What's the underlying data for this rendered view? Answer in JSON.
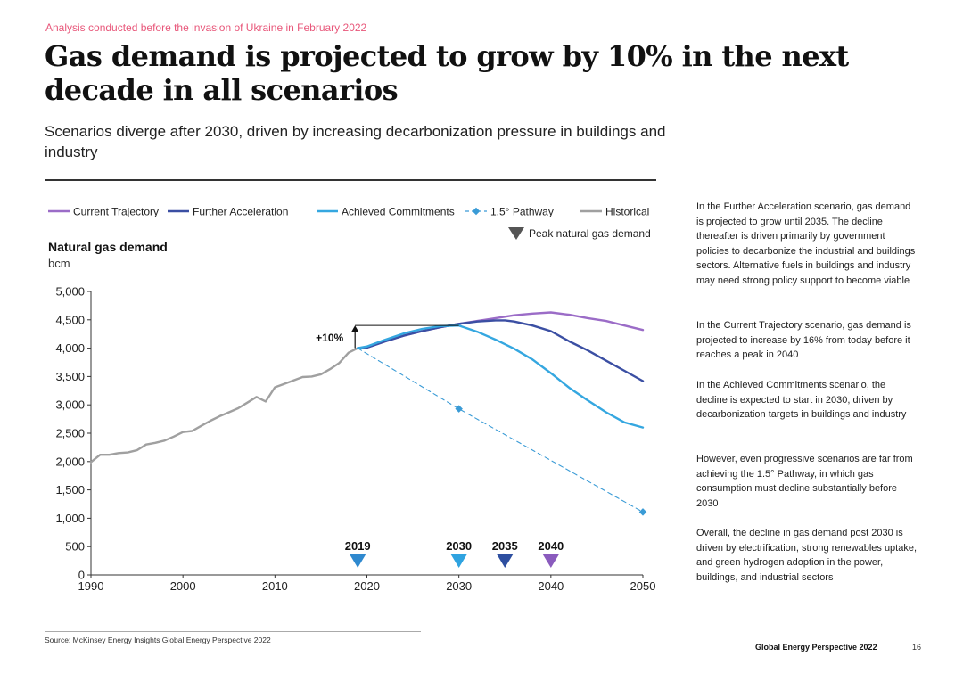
{
  "kicker": "Analysis conducted before the invasion of Ukraine in February 2022",
  "title": "Gas demand is projected to grow by 10% in the next decade in all scenarios",
  "subtitle": "Scenarios diverge after 2030, driven by increasing decarbonization pressure in buildings and industry",
  "paragraphs": [
    "In the Further Acceleration scenario, gas demand is projected to grow until 2035. The decline thereafter is driven primarily by government policies to decarbonize the industrial and buildings sectors. Alternative fuels in buildings and industry may need strong policy support to become viable",
    "In the Current Trajectory scenario, gas demand is projected to increase by 16% from today before it reaches a peak in 2040",
    "In the Achieved Commitments scenario, the decline is expected to start in 2030, driven by decarbonization targets in buildings and industry",
    "However, even progressive scenarios are far from achieving the 1.5° Pathway, in which gas consumption must decline substantially before 2030",
    "Overall, the decline in gas demand post 2030 is driven by electrification, strong renewables uptake, and green hydrogen adoption in the power, buildings, and industrial sectors"
  ],
  "source": "Source: McKinsey Energy Insights Global Energy Perspective 2022",
  "footer": "Global Energy Perspective 2022",
  "page_number": "16",
  "chart_data": {
    "type": "line",
    "ylabel": "Natural gas demand",
    "yunit": "bcm",
    "xlim": [
      1990,
      2050
    ],
    "ylim": [
      0,
      5000
    ],
    "xticks": [
      1990,
      2000,
      2010,
      2020,
      2030,
      2040,
      2050
    ],
    "yticks": [
      0,
      500,
      1000,
      1500,
      2000,
      2500,
      3000,
      3500,
      4000,
      4500,
      5000
    ],
    "legend": {
      "position": "top",
      "peak_marker_label": "Peak natural gas demand"
    },
    "annotation": {
      "label": "+10%",
      "from": [
        2019,
        4000
      ],
      "to": [
        2019,
        4400
      ]
    },
    "peaks": [
      {
        "year": 2019,
        "label": "2019",
        "color": "#2f89cf"
      },
      {
        "year": 2030,
        "label": "2030",
        "color": "#2fa3e0"
      },
      {
        "year": 2035,
        "label": "2035",
        "color": "#2e4fa0"
      },
      {
        "year": 2040,
        "label": "2040",
        "color": "#8a5bbd"
      }
    ],
    "series": [
      {
        "name": "Historical",
        "color": "#a0a0a0",
        "style": "solid",
        "x": [
          1990,
          1991,
          1992,
          1993,
          1994,
          1995,
          1996,
          1997,
          1998,
          1999,
          2000,
          2001,
          2002,
          2003,
          2004,
          2005,
          2006,
          2007,
          2008,
          2009,
          2010,
          2011,
          2012,
          2013,
          2014,
          2015,
          2016,
          2017,
          2018,
          2019
        ],
        "y": [
          1990,
          2120,
          2120,
          2150,
          2160,
          2200,
          2300,
          2330,
          2370,
          2440,
          2520,
          2540,
          2630,
          2720,
          2800,
          2870,
          2940,
          3040,
          3140,
          3060,
          3310,
          3370,
          3430,
          3490,
          3500,
          3540,
          3630,
          3740,
          3920,
          4000
        ]
      },
      {
        "name": "Current Trajectory",
        "color": "#9b6cc7",
        "style": "solid",
        "x": [
          2019,
          2020,
          2022,
          2024,
          2026,
          2028,
          2030,
          2032,
          2034,
          2036,
          2038,
          2040,
          2042,
          2044,
          2046,
          2048,
          2050
        ],
        "y": [
          4000,
          4010,
          4120,
          4220,
          4300,
          4370,
          4430,
          4480,
          4530,
          4580,
          4610,
          4630,
          4590,
          4530,
          4480,
          4400,
          4320
        ]
      },
      {
        "name": "Further Acceleration",
        "color": "#3b4fa3",
        "style": "solid",
        "x": [
          2019,
          2020,
          2022,
          2024,
          2026,
          2028,
          2030,
          2032,
          2034,
          2035,
          2036,
          2038,
          2040,
          2042,
          2044,
          2046,
          2048,
          2050
        ],
        "y": [
          4000,
          4010,
          4120,
          4220,
          4300,
          4370,
          4430,
          4470,
          4490,
          4490,
          4470,
          4400,
          4300,
          4120,
          3960,
          3780,
          3600,
          3420
        ]
      },
      {
        "name": "Achieved Commitments",
        "color": "#35a7e0",
        "style": "solid",
        "x": [
          2019,
          2020,
          2022,
          2024,
          2026,
          2028,
          2030,
          2032,
          2034,
          2036,
          2038,
          2040,
          2042,
          2044,
          2046,
          2048,
          2050
        ],
        "y": [
          4000,
          4030,
          4150,
          4260,
          4340,
          4390,
          4400,
          4290,
          4150,
          3990,
          3800,
          3560,
          3300,
          3080,
          2870,
          2690,
          2600
        ]
      },
      {
        "name": "1.5° Pathway",
        "color": "#3a9bd6",
        "style": "dashed",
        "x": [
          2019,
          2030,
          2050
        ],
        "y": [
          4000,
          2930,
          1110
        ]
      }
    ]
  }
}
